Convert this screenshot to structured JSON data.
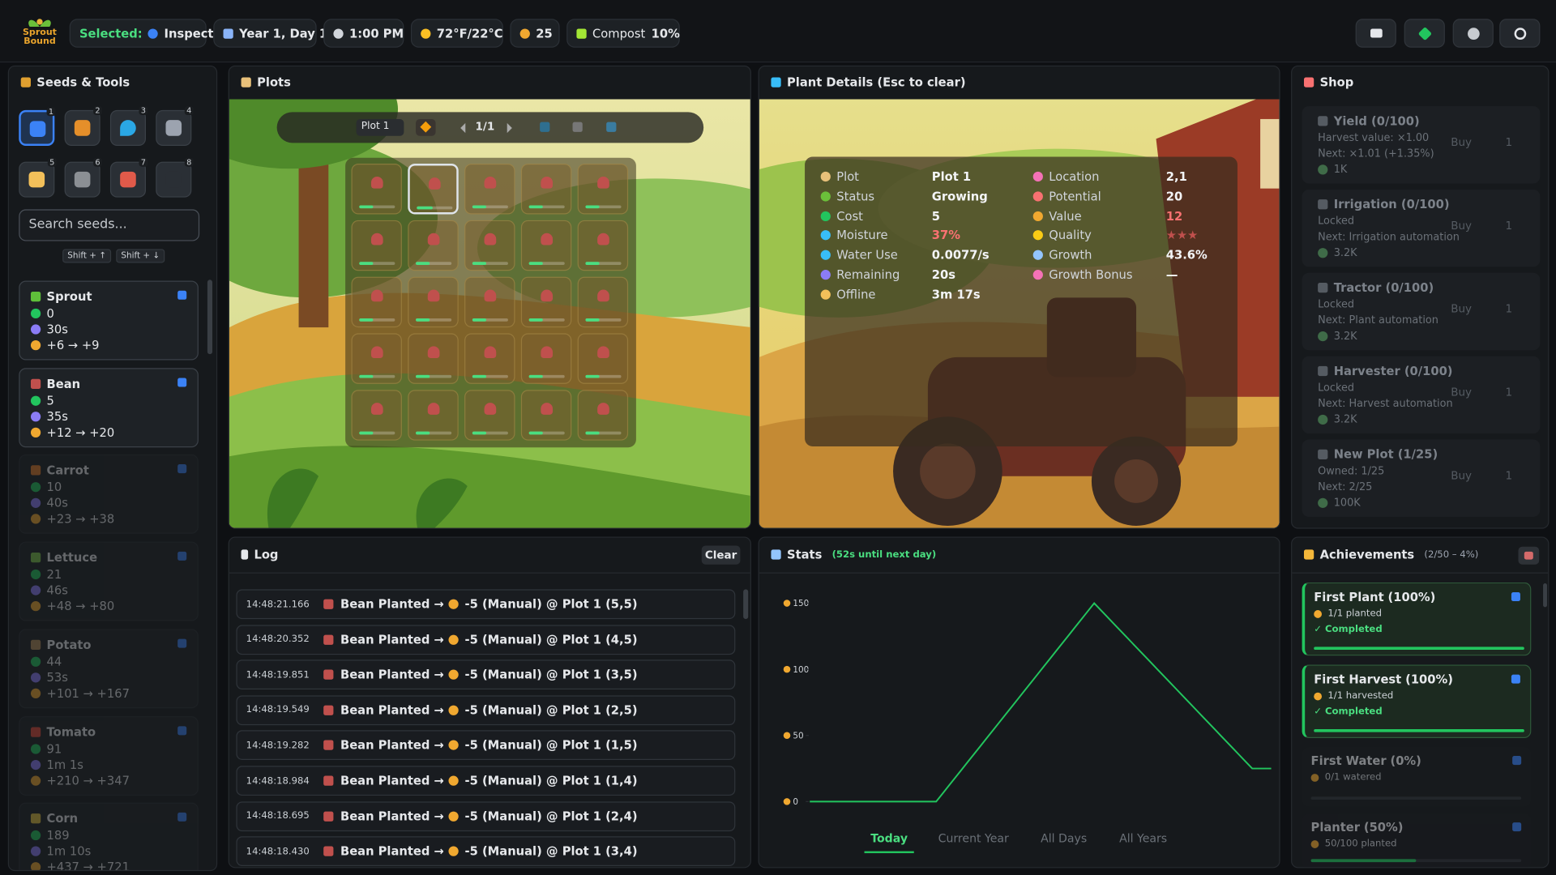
{
  "header": {
    "logo": "Sprout Bound",
    "selected_label": "Selected:",
    "selected_value": "Inspect",
    "date": "Year 1, Day 1",
    "time": "1:00 PM",
    "temperature": "72°F/22°C",
    "coins": "25",
    "compost_label": "Compost",
    "compost_value": "10%"
  },
  "seeds_tools": {
    "title": "Seeds & Tools",
    "tool_keys": [
      "1",
      "2",
      "3",
      "4",
      "5",
      "6",
      "7",
      "8"
    ],
    "search_placeholder": "Search seeds...",
    "hints": [
      "Shift + ↑",
      "Shift + ↓"
    ],
    "seeds": [
      {
        "name": "Sprout",
        "cost": "0",
        "time": "30s",
        "yield": "+6 → +9",
        "affordable": true
      },
      {
        "name": "Bean",
        "cost": "5",
        "time": "35s",
        "yield": "+12 → +20",
        "affordable": true
      },
      {
        "name": "Carrot",
        "cost": "10",
        "time": "40s",
        "yield": "+23 → +38",
        "affordable": false
      },
      {
        "name": "Lettuce",
        "cost": "21",
        "time": "46s",
        "yield": "+48 → +80",
        "affordable": false
      },
      {
        "name": "Potato",
        "cost": "44",
        "time": "53s",
        "yield": "+101 → +167",
        "affordable": false
      },
      {
        "name": "Tomato",
        "cost": "91",
        "time": "1m 1s",
        "yield": "+210 → +347",
        "affordable": false
      },
      {
        "name": "Corn",
        "cost": "189",
        "time": "1m 10s",
        "yield": "+437 → +721",
        "affordable": false
      }
    ]
  },
  "plots": {
    "title": "Plots",
    "plot_select": "Plot 1",
    "page": "1/1",
    "selected_cell": 1,
    "growth": [
      40,
      44,
      40,
      40,
      40,
      40,
      40,
      40,
      40,
      40,
      40,
      40,
      40,
      40,
      40,
      40,
      40,
      40,
      40,
      40,
      40,
      40,
      40,
      40,
      40
    ]
  },
  "plant_details": {
    "title": "Plant Details (Esc to clear)",
    "left": [
      {
        "label": "Plot",
        "value": "Plot 1"
      },
      {
        "label": "Status",
        "value": "Growing"
      },
      {
        "label": "Cost",
        "value": "5"
      },
      {
        "label": "Moisture",
        "value": "37%"
      },
      {
        "label": "Water Use",
        "value": "0.0077/s"
      },
      {
        "label": "Remaining",
        "value": "20s"
      },
      {
        "label": "Offline",
        "value": "3m 17s"
      }
    ],
    "right": [
      {
        "label": "Location",
        "value": "2,1"
      },
      {
        "label": "Potential",
        "value": "20"
      },
      {
        "label": "Value",
        "value": "12"
      },
      {
        "label": "Quality",
        "value": "★★★"
      },
      {
        "label": "Growth",
        "value": "43.6%"
      },
      {
        "label": "Growth Bonus",
        "value": "—"
      }
    ]
  },
  "shop": {
    "title": "Shop",
    "buy": "Buy",
    "quantity": "1",
    "items": [
      {
        "name": "Yield (0/100)",
        "line1": "Harvest value: ×1.00",
        "line2": "Next: ×1.01 (+1.35%)",
        "price": "1K"
      },
      {
        "name": "Irrigation (0/100)",
        "line1": "Locked",
        "line2": "Next: Irrigation automation",
        "price": "3.2K"
      },
      {
        "name": "Tractor (0/100)",
        "line1": "Locked",
        "line2": "Next: Plant automation",
        "price": "3.2K"
      },
      {
        "name": "Harvester (0/100)",
        "line1": "Locked",
        "line2": "Next: Harvest automation",
        "price": "3.2K"
      },
      {
        "name": "New Plot (1/25)",
        "line1": "Owned: 1/25",
        "line2": "Next: 2/25",
        "price": "100K"
      }
    ]
  },
  "log": {
    "title": "Log",
    "clear": "Clear",
    "entries": [
      {
        "time": "14:48:21.166",
        "event": "Bean Planted →",
        "detail": "-5 (Manual) @ Plot 1 (5,5)"
      },
      {
        "time": "14:48:20.352",
        "event": "Bean Planted →",
        "detail": "-5 (Manual) @ Plot 1 (4,5)"
      },
      {
        "time": "14:48:19.851",
        "event": "Bean Planted →",
        "detail": "-5 (Manual) @ Plot 1 (3,5)"
      },
      {
        "time": "14:48:19.549",
        "event": "Bean Planted →",
        "detail": "-5 (Manual) @ Plot 1 (2,5)"
      },
      {
        "time": "14:48:19.282",
        "event": "Bean Planted →",
        "detail": "-5 (Manual) @ Plot 1 (1,5)"
      },
      {
        "time": "14:48:18.984",
        "event": "Bean Planted →",
        "detail": "-5 (Manual) @ Plot 1 (1,4)"
      },
      {
        "time": "14:48:18.695",
        "event": "Bean Planted →",
        "detail": "-5 (Manual) @ Plot 1 (2,4)"
      },
      {
        "time": "14:48:18.430",
        "event": "Bean Planted →",
        "detail": "-5 (Manual) @ Plot 1 (3,4)"
      }
    ]
  },
  "stats": {
    "title": "Stats",
    "subtitle": "(52s until next day)",
    "tabs": [
      "Today",
      "Current Year",
      "All Days",
      "All Years"
    ],
    "active_tab": 0,
    "chart": {
      "type": "line",
      "color": "#22c55e",
      "ylim": [
        0,
        160
      ],
      "yticks": [
        0,
        50,
        100,
        150
      ],
      "grid": false,
      "values": [
        0,
        0,
        0,
        0,
        0,
        0,
        0,
        0,
        0,
        0,
        0,
        0,
        0,
        0,
        0,
        0,
        0,
        0,
        0,
        0,
        0,
        6,
        12,
        18,
        24,
        30,
        36,
        42,
        48,
        54,
        60,
        66,
        72,
        78,
        84,
        90,
        96,
        102,
        108,
        114,
        120,
        126,
        132,
        138,
        144,
        150,
        145,
        140,
        135,
        130,
        125,
        120,
        115,
        110,
        105,
        100,
        95,
        90,
        85,
        80,
        75,
        70,
        65,
        60,
        55,
        50,
        45,
        40,
        35,
        30,
        25,
        25,
        25,
        25
      ]
    }
  },
  "achievements": {
    "title": "Achievements",
    "summary": "(2/50 – 4%)",
    "items": [
      {
        "name": "First Plant",
        "percent": "(100%)",
        "detail": "1/1 planted",
        "status": "✓ Completed",
        "progress": 100
      },
      {
        "name": "First Harvest",
        "percent": "(100%)",
        "detail": "1/1 harvested",
        "status": "✓ Completed",
        "progress": 100
      },
      {
        "name": "First Water",
        "percent": "(0%)",
        "detail": "0/1 watered",
        "progress": 0
      },
      {
        "name": "Planter",
        "percent": "(50%)",
        "detail": "50/100 planted",
        "progress": 50
      }
    ]
  }
}
